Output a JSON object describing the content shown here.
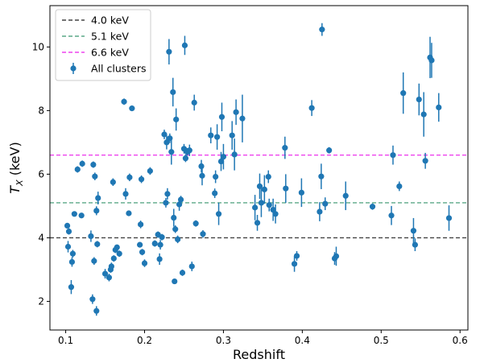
{
  "chart_data": {
    "type": "scatter",
    "xlabel": "Redshift",
    "ylabel_main": "T",
    "ylabel_sub": "X",
    "ylabel_unit": " (keV)",
    "xlim": [
      0.08,
      0.61
    ],
    "ylim": [
      1.1,
      11.3
    ],
    "x_ticks": [
      0.1,
      0.2,
      0.3,
      0.4,
      0.5,
      0.6
    ],
    "x_tick_labels": [
      "0.1",
      "0.2",
      "0.3",
      "0.4",
      "0.5",
      "0.6"
    ],
    "y_ticks": [
      2,
      4,
      6,
      8,
      10
    ],
    "y_tick_labels": [
      "2",
      "4",
      "6",
      "8",
      "10"
    ],
    "legend_position": "top-left",
    "hlines": [
      {
        "name": "4.0 keV",
        "y": 4.0,
        "color": "#444444"
      },
      {
        "name": "5.1 keV",
        "y": 5.1,
        "color": "#5aa887"
      },
      {
        "name": "6.6 keV",
        "y": 6.6,
        "color": "#ee44ee"
      }
    ],
    "series": [
      {
        "name": "All clusters",
        "color": "#1f77b4",
        "points": [
          [
            0.102,
            4.38,
            0.08
          ],
          [
            0.103,
            3.72,
            0.18
          ],
          [
            0.104,
            4.2,
            0.1
          ],
          [
            0.107,
            2.45,
            0.22
          ],
          [
            0.108,
            3.24,
            0.15
          ],
          [
            0.109,
            3.5,
            0.12
          ],
          [
            0.111,
            4.75,
            0.08
          ],
          [
            0.115,
            6.15,
            0.1
          ],
          [
            0.12,
            4.7,
            0.08
          ],
          [
            0.121,
            6.33,
            0.1
          ],
          [
            0.132,
            4.05,
            0.18
          ],
          [
            0.134,
            2.07,
            0.15
          ],
          [
            0.135,
            6.3,
            0.1
          ],
          [
            0.136,
            3.27,
            0.12
          ],
          [
            0.137,
            5.93,
            0.12
          ],
          [
            0.139,
            1.7,
            0.15
          ],
          [
            0.139,
            4.85,
            0.14
          ],
          [
            0.14,
            3.8,
            0.1
          ],
          [
            0.141,
            5.25,
            0.2
          ],
          [
            0.15,
            2.87,
            0.15
          ],
          [
            0.155,
            2.75,
            0.12
          ],
          [
            0.157,
            3.0,
            0.1
          ],
          [
            0.158,
            3.1,
            0.12
          ],
          [
            0.16,
            5.75,
            0.12
          ],
          [
            0.161,
            3.35,
            0.1
          ],
          [
            0.163,
            3.62,
            0.1
          ],
          [
            0.165,
            3.7,
            0.08
          ],
          [
            0.168,
            3.5,
            0.1
          ],
          [
            0.174,
            8.28,
            0.1
          ],
          [
            0.176,
            5.38,
            0.18
          ],
          [
            0.18,
            4.77,
            0.08
          ],
          [
            0.181,
            5.9,
            0.12
          ],
          [
            0.184,
            8.07,
            0.08
          ],
          [
            0.194,
            3.78,
            0.08
          ],
          [
            0.195,
            4.42,
            0.12
          ],
          [
            0.196,
            5.84,
            0.12
          ],
          [
            0.197,
            3.55,
            0.1
          ],
          [
            0.2,
            3.2,
            0.12
          ],
          [
            0.207,
            6.1,
            0.12
          ],
          [
            0.213,
            3.82,
            0.1
          ],
          [
            0.217,
            4.1,
            0.1
          ],
          [
            0.219,
            3.33,
            0.18
          ],
          [
            0.22,
            3.78,
            0.15
          ],
          [
            0.222,
            4.02,
            0.1
          ],
          [
            0.225,
            7.25,
            0.15
          ],
          [
            0.227,
            5.1,
            0.15
          ],
          [
            0.228,
            7.0,
            0.22
          ],
          [
            0.229,
            5.38,
            0.18
          ],
          [
            0.231,
            9.85,
            0.4
          ],
          [
            0.232,
            7.13,
            0.15
          ],
          [
            0.234,
            6.7,
            0.4
          ],
          [
            0.236,
            8.58,
            0.45
          ],
          [
            0.237,
            4.63,
            0.28
          ],
          [
            0.238,
            2.63,
            0.08
          ],
          [
            0.239,
            4.27,
            0.12
          ],
          [
            0.24,
            7.72,
            0.35
          ],
          [
            0.242,
            3.95,
            0.12
          ],
          [
            0.244,
            5.05,
            0.2
          ],
          [
            0.246,
            5.2,
            0.12
          ],
          [
            0.248,
            2.9,
            0.1
          ],
          [
            0.25,
            6.8,
            0.15
          ],
          [
            0.251,
            10.05,
            0.3
          ],
          [
            0.252,
            6.5,
            0.12
          ],
          [
            0.254,
            6.7,
            0.12
          ],
          [
            0.257,
            6.75,
            0.18
          ],
          [
            0.26,
            3.1,
            0.15
          ],
          [
            0.263,
            8.25,
            0.25
          ],
          [
            0.265,
            4.45,
            0.1
          ],
          [
            0.272,
            6.25,
            0.2
          ],
          [
            0.273,
            5.95,
            0.3
          ],
          [
            0.274,
            4.12,
            0.12
          ],
          [
            0.284,
            7.22,
            0.25
          ],
          [
            0.289,
            5.4,
            0.15
          ],
          [
            0.29,
            5.92,
            0.2
          ],
          [
            0.292,
            7.17,
            0.4
          ],
          [
            0.294,
            4.75,
            0.35
          ],
          [
            0.297,
            6.4,
            0.3
          ],
          [
            0.298,
            7.8,
            0.45
          ],
          [
            0.3,
            6.55,
            0.4
          ],
          [
            0.311,
            7.22,
            0.45
          ],
          [
            0.314,
            6.62,
            0.5
          ],
          [
            0.316,
            7.95,
            0.4
          ],
          [
            0.324,
            7.75,
            0.75
          ],
          [
            0.34,
            4.95,
            0.4
          ],
          [
            0.343,
            4.47,
            0.25
          ],
          [
            0.346,
            5.62,
            0.4
          ],
          [
            0.348,
            5.1,
            0.45
          ],
          [
            0.352,
            5.52,
            0.45
          ],
          [
            0.357,
            5.92,
            0.2
          ],
          [
            0.358,
            5.03,
            0.2
          ],
          [
            0.363,
            4.88,
            0.35
          ],
          [
            0.366,
            4.75,
            0.3
          ],
          [
            0.378,
            6.83,
            0.35
          ],
          [
            0.379,
            5.55,
            0.45
          ],
          [
            0.39,
            3.18,
            0.25
          ],
          [
            0.393,
            3.43,
            0.15
          ],
          [
            0.399,
            5.42,
            0.45
          ],
          [
            0.412,
            8.08,
            0.25
          ],
          [
            0.422,
            4.82,
            0.3
          ],
          [
            0.424,
            5.93,
            0.4
          ],
          [
            0.425,
            10.55,
            0.2
          ],
          [
            0.429,
            5.07,
            0.2
          ],
          [
            0.434,
            6.75,
            0.1
          ],
          [
            0.441,
            3.35,
            0.2
          ],
          [
            0.443,
            3.42,
            0.3
          ],
          [
            0.455,
            5.32,
            0.45
          ],
          [
            0.489,
            4.98,
            0.1
          ],
          [
            0.513,
            4.7,
            0.3
          ],
          [
            0.515,
            6.6,
            0.3
          ],
          [
            0.523,
            5.62,
            0.15
          ],
          [
            0.528,
            8.55,
            0.65
          ],
          [
            0.541,
            4.22,
            0.4
          ],
          [
            0.543,
            3.78,
            0.2
          ],
          [
            0.548,
            8.35,
            0.5
          ],
          [
            0.554,
            7.88,
            0.7
          ],
          [
            0.556,
            6.42,
            0.25
          ],
          [
            0.562,
            9.67,
            0.65
          ],
          [
            0.564,
            9.58,
            0.55
          ],
          [
            0.573,
            8.1,
            0.45
          ],
          [
            0.586,
            4.62,
            0.4
          ]
        ]
      }
    ]
  }
}
